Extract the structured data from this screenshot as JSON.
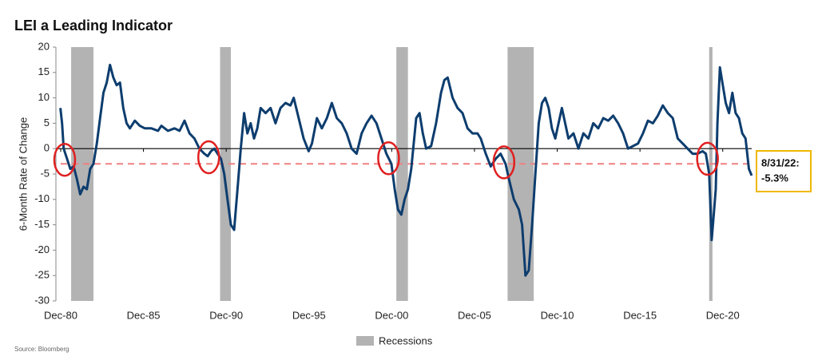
{
  "chart_data": {
    "type": "line",
    "title": "LEI a Leading Indicator",
    "ylabel": "6-Month Rate of Change",
    "source": "Source: Bloomberg",
    "xlim": [
      1980.92,
      2022.67
    ],
    "xticks": [
      {
        "value": 1980.92,
        "label": "Dec-80"
      },
      {
        "value": 1985.92,
        "label": "Dec-85"
      },
      {
        "value": 1990.92,
        "label": "Dec-90"
      },
      {
        "value": 1995.92,
        "label": "Dec-95"
      },
      {
        "value": 2000.92,
        "label": "Dec-00"
      },
      {
        "value": 2005.92,
        "label": "Dec-05"
      },
      {
        "value": 2010.92,
        "label": "Dec-10"
      },
      {
        "value": 2015.92,
        "label": "Dec-15"
      },
      {
        "value": 2020.92,
        "label": "Dec-20"
      }
    ],
    "ylim": [
      -30,
      20
    ],
    "yticks": [
      20,
      15,
      10,
      5,
      0,
      -5,
      -10,
      -15,
      -20,
      -25,
      -30
    ],
    "reference": -3,
    "reference_color": "#f08080",
    "recession_name": "Recessions",
    "recession_color": "#b3b3b3",
    "recessions": [
      [
        1981.55,
        1982.9
      ],
      [
        1990.55,
        1991.2
      ],
      [
        2001.2,
        2001.9
      ],
      [
        2007.92,
        2009.5
      ],
      [
        2020.1,
        2020.3
      ]
    ],
    "highlights": [
      {
        "x": 1981.16,
        "y": -2.2
      },
      {
        "x": 1989.86,
        "y": -1.7
      },
      {
        "x": 2000.73,
        "y": -1.9
      },
      {
        "x": 2007.7,
        "y": -2.7
      },
      {
        "x": 2020.0,
        "y": -2.0
      }
    ],
    "highlight_color": "#e02020",
    "annotation": [
      "8/31/22:",
      "-5.3%"
    ],
    "annotation_color": "#f0b800",
    "series": [
      {
        "color": "#0d3d6e",
        "x": [
          1980.9,
          1981.0,
          1981.1,
          1981.3,
          1981.5,
          1981.7,
          1981.9,
          1982.1,
          1982.3,
          1982.5,
          1982.7,
          1982.9,
          1983.1,
          1983.3,
          1983.5,
          1983.7,
          1983.9,
          1984.1,
          1984.3,
          1984.5,
          1984.7,
          1984.9,
          1985.1,
          1985.4,
          1985.7,
          1986.0,
          1986.4,
          1986.8,
          1987.0,
          1987.4,
          1987.8,
          1988.1,
          1988.4,
          1988.7,
          1989.0,
          1989.3,
          1989.6,
          1989.8,
          1990.0,
          1990.2,
          1990.4,
          1990.6,
          1990.8,
          1991.0,
          1991.2,
          1991.4,
          1991.6,
          1991.8,
          1992.0,
          1992.2,
          1992.4,
          1992.6,
          1992.8,
          1993.0,
          1993.3,
          1993.6,
          1993.9,
          1994.2,
          1994.5,
          1994.8,
          1995.0,
          1995.3,
          1995.6,
          1995.9,
          1996.1,
          1996.4,
          1996.7,
          1997.0,
          1997.3,
          1997.6,
          1997.9,
          1998.2,
          1998.5,
          1998.8,
          1999.1,
          1999.4,
          1999.7,
          2000.0,
          2000.3,
          2000.6,
          2000.9,
          2001.1,
          2001.3,
          2001.5,
          2001.7,
          2001.9,
          2002.1,
          2002.4,
          2002.6,
          2002.8,
          2003.0,
          2003.3,
          2003.6,
          2003.9,
          2004.1,
          2004.3,
          2004.6,
          2004.9,
          2005.2,
          2005.5,
          2005.8,
          2006.1,
          2006.3,
          2006.6,
          2006.9,
          2007.2,
          2007.5,
          2007.8,
          2008.0,
          2008.3,
          2008.6,
          2008.8,
          2009.0,
          2009.2,
          2009.4,
          2009.6,
          2009.8,
          2010.0,
          2010.2,
          2010.4,
          2010.6,
          2010.8,
          2011.0,
          2011.2,
          2011.4,
          2011.6,
          2011.9,
          2012.2,
          2012.5,
          2012.8,
          2013.1,
          2013.4,
          2013.7,
          2014.0,
          2014.3,
          2014.6,
          2014.9,
          2015.2,
          2015.5,
          2015.8,
          2016.1,
          2016.4,
          2016.7,
          2017.0,
          2017.3,
          2017.6,
          2017.9,
          2018.2,
          2018.5,
          2018.8,
          2019.1,
          2019.4,
          2019.7,
          2019.9,
          2020.1,
          2020.25,
          2020.4,
          2020.5,
          2020.6,
          2020.75,
          2020.9,
          2021.1,
          2021.3,
          2021.5,
          2021.7,
          2021.9,
          2022.1,
          2022.3,
          2022.5,
          2022.67
        ],
        "values": [
          8,
          5,
          0,
          -2,
          -4,
          -3.5,
          -6,
          -9,
          -7.5,
          -8,
          -4,
          -3,
          1,
          6,
          11,
          13,
          16.5,
          14,
          12.5,
          13,
          8,
          5,
          4,
          5.5,
          4.5,
          4,
          4,
          3.5,
          4.5,
          3.5,
          4,
          3.5,
          5.5,
          3,
          2,
          0,
          -1,
          -1.5,
          -0.5,
          0,
          -1,
          -2,
          -5,
          -10,
          -15,
          -16,
          -8,
          0,
          7,
          3,
          5,
          2,
          4,
          8,
          7,
          8,
          5,
          8,
          9,
          8.5,
          10,
          6,
          2,
          -0.5,
          1,
          6,
          4,
          6,
          9,
          6,
          5,
          3,
          0,
          -1,
          3,
          5,
          6.5,
          5,
          2,
          -1,
          -3,
          -8,
          -12,
          -13,
          -10,
          -8,
          -4,
          6,
          7,
          3,
          0,
          0.5,
          5,
          11,
          13.5,
          14,
          10,
          8,
          7,
          4,
          3,
          3,
          2,
          -1,
          -3.5,
          -2,
          -1,
          -3,
          -6,
          -10,
          -12,
          -15,
          -25,
          -24,
          -15,
          -5,
          5,
          9,
          10,
          8,
          4,
          2,
          5,
          8,
          5,
          2,
          3,
          0,
          3,
          2,
          5,
          4,
          6,
          5.5,
          6.5,
          5,
          3,
          0,
          0.5,
          1,
          3,
          5.5,
          5,
          6.5,
          8.5,
          7,
          6,
          2,
          1,
          0,
          -1,
          -1,
          -0.5,
          -1,
          -5,
          -18,
          -12,
          -8,
          5,
          16,
          13,
          9,
          7,
          11,
          7,
          6,
          3,
          2,
          -4,
          -5.3
        ]
      }
    ]
  }
}
